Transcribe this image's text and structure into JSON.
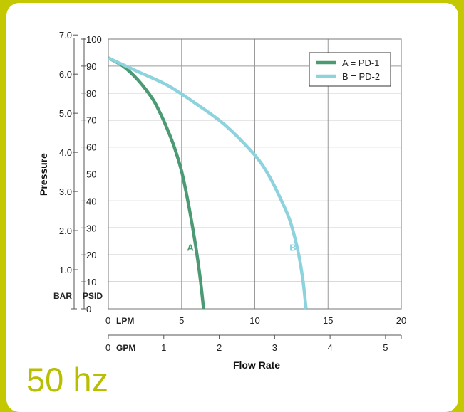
{
  "page": {
    "hz_label": "50 hz"
  },
  "colors": {
    "background": "#c3c800",
    "card": "#ffffff",
    "accent_text": "#b8be00",
    "series_a": "#4b9a73",
    "series_b": "#8dd3de",
    "grid": "#9a9a9a"
  },
  "chart_data": {
    "type": "line",
    "title": "",
    "xlabel": "Flow Rate",
    "ylabel": "Pressure",
    "xlim": [
      0,
      20
    ],
    "ylim": [
      0,
      100
    ],
    "grid": true,
    "legend_position": "top-right",
    "axes": {
      "lpm": {
        "unit_label": "LPM",
        "ticks": [
          0,
          5,
          10,
          15,
          20
        ]
      },
      "gpm": {
        "unit_label": "GPM",
        "ticks": [
          0,
          1,
          2,
          3,
          4,
          5
        ],
        "lpm_per_unit": 3.785
      },
      "psid": {
        "unit_label": "PSID",
        "ticks": [
          0,
          10,
          20,
          30,
          40,
          50,
          60,
          70,
          80,
          90,
          100
        ]
      },
      "bar": {
        "unit_label": "BAR",
        "ticks": [
          "1.0",
          "2.0",
          "3.0",
          "4.0",
          "5.0",
          "6.0",
          "7.0"
        ],
        "psid_per_unit": 14.5038
      }
    },
    "series": [
      {
        "name": "A = PD-1",
        "label": "A",
        "label_at": [
          5.6,
          22
        ],
        "x": [
          0,
          1,
          2,
          3,
          3.5,
          4,
          4.5,
          5,
          5.5,
          6,
          6.3,
          6.5
        ],
        "y": [
          93,
          90,
          85,
          78,
          73,
          67,
          60,
          51,
          38,
          22,
          10,
          0
        ]
      },
      {
        "name": "B = PD-2",
        "label": "B",
        "label_at": [
          12.6,
          22
        ],
        "x": [
          0,
          2,
          4,
          6,
          8,
          10,
          11,
          12,
          12.5,
          13,
          13.3,
          13.5
        ],
        "y": [
          93,
          88,
          83,
          76,
          68,
          57,
          49,
          38,
          31,
          20,
          10,
          0
        ]
      }
    ]
  }
}
